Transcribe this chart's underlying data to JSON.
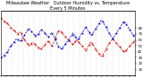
{
  "title": "Milwaukee Weather   Outdoor Humidity vs. Temperature Every 5 Minutes",
  "title_fontsize": 3.5,
  "background_color": "#ffffff",
  "grid_color": "#bbbbbb",
  "temp_color": "#dd0000",
  "humidity_color": "#0000cc",
  "ylim_temp": [
    -10,
    90
  ],
  "ylim_humidity": [
    0,
    110
  ],
  "right_yticks": [
    10,
    20,
    30,
    40,
    50,
    60,
    70,
    80
  ],
  "right_yticklabels": [
    "10",
    "20",
    "30",
    "40",
    "50",
    "60",
    "70",
    "80"
  ],
  "temp_data": [
    78,
    77,
    75,
    73,
    72,
    71,
    70,
    68,
    65,
    63,
    62,
    60,
    59,
    57,
    55,
    54,
    56,
    57,
    55,
    51,
    48,
    45,
    43,
    40,
    38,
    35,
    37,
    39,
    41,
    40,
    38,
    36,
    34,
    33,
    31,
    30,
    31,
    33,
    35,
    37,
    39,
    41,
    43,
    41,
    38,
    36,
    37,
    41,
    46,
    51,
    55,
    58,
    59,
    58,
    56,
    54,
    52,
    50,
    48,
    46,
    44,
    42,
    41,
    39,
    37,
    40,
    42,
    45,
    43,
    41,
    39,
    37,
    35,
    33,
    31,
    29,
    31,
    34,
    37,
    40,
    42,
    39,
    36,
    33,
    30,
    27,
    25,
    23,
    21,
    19,
    21,
    24,
    27,
    30,
    33,
    37,
    40,
    42,
    44,
    46,
    44,
    42,
    40,
    38,
    36,
    34,
    32,
    30,
    28,
    26,
    27,
    29,
    31,
    33,
    35,
    37,
    39,
    41,
    43,
    41
  ],
  "humidity_data": [
    30,
    31,
    32,
    34,
    36,
    38,
    40,
    43,
    47,
    50,
    52,
    55,
    57,
    60,
    62,
    61,
    59,
    57,
    59,
    62,
    65,
    68,
    71,
    74,
    77,
    80,
    78,
    75,
    72,
    70,
    68,
    65,
    67,
    70,
    72,
    75,
    77,
    76,
    74,
    72,
    70,
    67,
    65,
    67,
    70,
    72,
    69,
    66,
    62,
    57,
    53,
    49,
    47,
    46,
    45,
    47,
    50,
    53,
    56,
    58,
    60,
    63,
    66,
    69,
    72,
    69,
    66,
    63,
    60,
    63,
    66,
    69,
    72,
    75,
    78,
    82,
    79,
    76,
    73,
    70,
    67,
    70,
    73,
    76,
    79,
    82,
    85,
    88,
    91,
    94,
    91,
    88,
    85,
    82,
    78,
    75,
    71,
    68,
    65,
    62,
    65,
    68,
    71,
    74,
    77,
    80,
    83,
    86,
    89,
    92,
    89,
    86,
    83,
    80,
    77,
    74,
    71,
    68,
    65,
    68
  ]
}
